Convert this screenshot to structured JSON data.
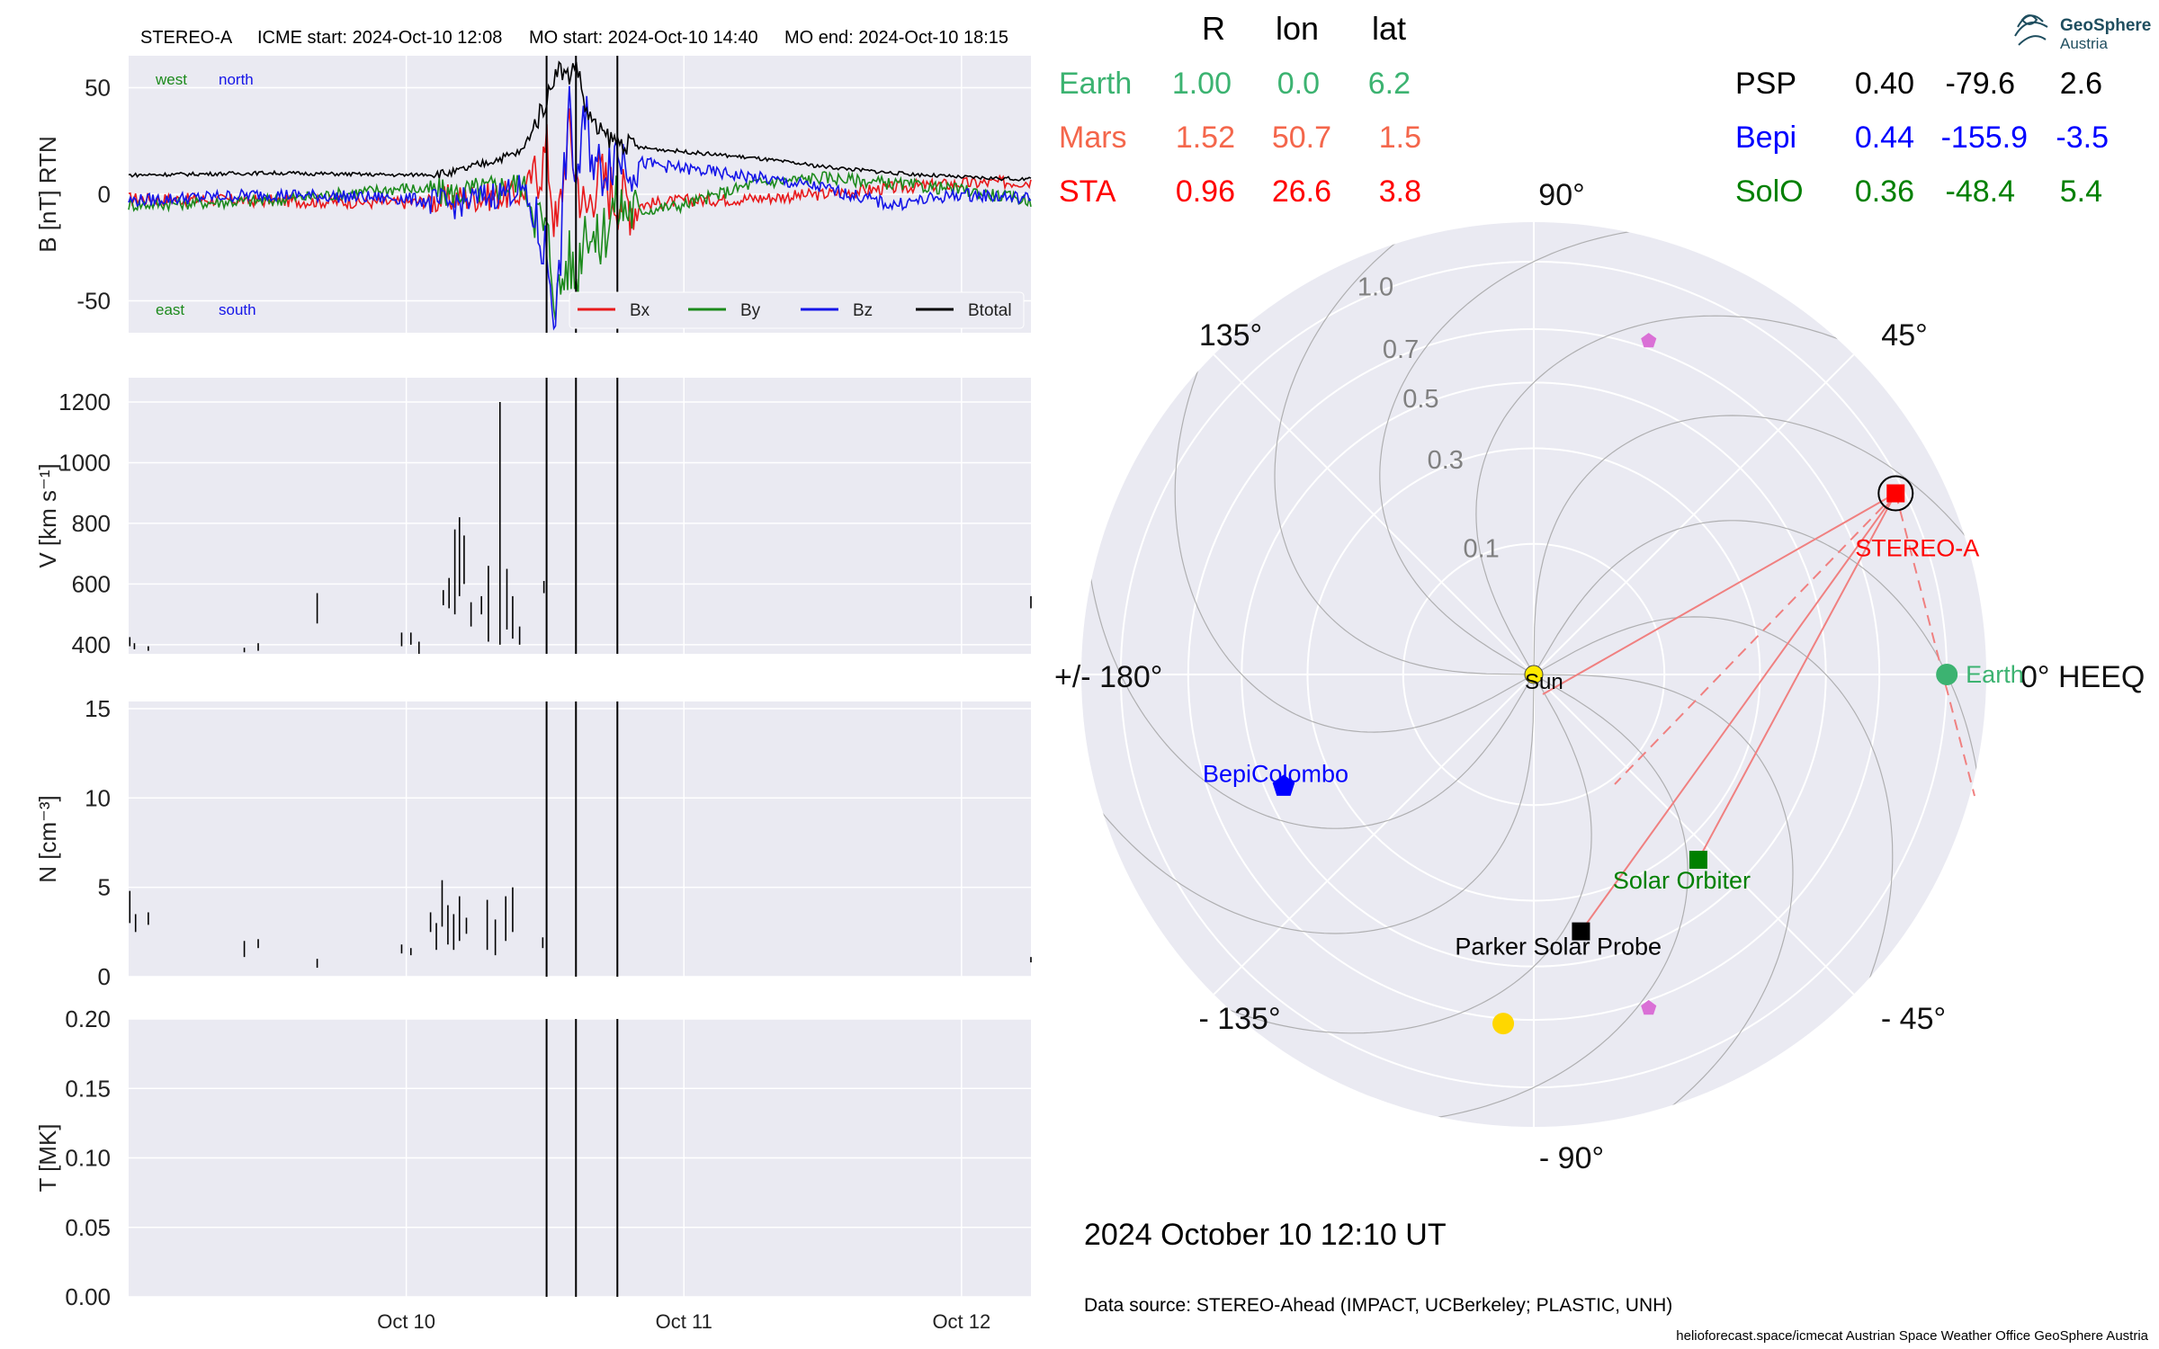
{
  "title_line": {
    "spacecraft": "STEREO-A",
    "icme_start": "ICME start: 2024-Oct-10 12:08",
    "mo_start": "MO start: 2024-Oct-10 14:40",
    "mo_end": "MO end: 2024-Oct-10 18:15"
  },
  "colors": {
    "panel_bg": "#eaeaf2",
    "grid": "#ffffff",
    "bx": "#e8191b",
    "by": "#1c8a1c",
    "bz": "#1515e8",
    "btotal": "#000000",
    "earth": "#3cb371",
    "mars": "#f4664b",
    "sta": "#ff0000",
    "psp": "#000000",
    "bepi": "#0000ff",
    "solo": "#008000",
    "spiral": "#a0a0a0",
    "sun": "#ffea00",
    "planet_pink": "#da70d6",
    "planet_yellow": "#ffd700"
  },
  "chart_data": [
    {
      "type": "line",
      "panel": "magnetic_field",
      "ylabel": "B [nT] RTN",
      "ylim": [
        -65,
        65
      ],
      "yticks": [
        50,
        0,
        -50
      ],
      "xlim": [
        "2024-10-09 00:00",
        "2024-10-12 06:00"
      ],
      "xticks": [
        {
          "label": "Oct 10",
          "t": 24
        },
        {
          "label": "Oct 11",
          "t": 48
        },
        {
          "label": "Oct 12",
          "t": 72
        }
      ],
      "corner_labels": {
        "top": [
          "west",
          "north"
        ],
        "bottom": [
          "east",
          "south"
        ]
      },
      "legend": [
        "Bx",
        "By",
        "Bz",
        "Btotal"
      ],
      "legend_position": "lower right",
      "event_lines_hours": [
        36.13,
        38.67,
        42.25
      ],
      "series": [
        {
          "name": "Bx",
          "t": [
            0,
            12,
            24,
            28,
            34,
            36.2,
            37,
            38,
            38.7,
            39.5,
            40.5,
            42,
            44,
            48,
            54,
            60,
            66,
            72,
            78
          ],
          "values": [
            -2,
            -3,
            -4,
            -2,
            0,
            20,
            -20,
            30,
            10,
            -10,
            10,
            0,
            -5,
            -3,
            -2,
            0,
            3,
            5,
            6
          ]
        },
        {
          "name": "By",
          "t": [
            0,
            12,
            24,
            28,
            34,
            36.2,
            37,
            38,
            38.7,
            39.5,
            40.5,
            42,
            44,
            48,
            54,
            60,
            66,
            72,
            78
          ],
          "values": [
            -5,
            -3,
            3,
            0,
            5,
            -20,
            -50,
            -30,
            -40,
            -10,
            -25,
            -5,
            -8,
            -5,
            5,
            8,
            5,
            2,
            -3
          ]
        },
        {
          "name": "Bz",
          "t": [
            0,
            12,
            24,
            28,
            34,
            36.2,
            37,
            38,
            38.7,
            39.5,
            40.5,
            42,
            44,
            48,
            54,
            60,
            66,
            72,
            78
          ],
          "values": [
            -3,
            0,
            -2,
            -5,
            3,
            -30,
            -60,
            40,
            5,
            35,
            10,
            20,
            15,
            12,
            8,
            3,
            -5,
            0,
            -2
          ]
        },
        {
          "name": "Btotal",
          "t": [
            0,
            12,
            24,
            28,
            34,
            36.2,
            37,
            38,
            38.7,
            39.5,
            40.5,
            42,
            44,
            48,
            54,
            60,
            66,
            72,
            78
          ],
          "values": [
            9,
            10,
            9,
            10,
            20,
            45,
            60,
            55,
            62,
            40,
            30,
            25,
            22,
            20,
            17,
            13,
            10,
            8,
            7
          ]
        }
      ]
    },
    {
      "type": "line",
      "panel": "speed",
      "ylabel": "V [km s⁻¹]",
      "ylim": [
        370,
        1280
      ],
      "yticks": [
        1200,
        1000,
        800,
        600,
        400
      ],
      "segments": [
        {
          "t": 0.1,
          "lo": 395,
          "hi": 425
        },
        {
          "t": 0.5,
          "lo": 385,
          "hi": 405
        },
        {
          "t": 1.7,
          "lo": 380,
          "hi": 395
        },
        {
          "t": 10,
          "lo": 375,
          "hi": 390
        },
        {
          "t": 11.2,
          "lo": 380,
          "hi": 405
        },
        {
          "t": 16.3,
          "lo": 470,
          "hi": 570
        },
        {
          "t": 23.6,
          "lo": 395,
          "hi": 440
        },
        {
          "t": 24.4,
          "lo": 400,
          "hi": 440
        },
        {
          "t": 25.1,
          "lo": 370,
          "hi": 410
        },
        {
          "t": 27.2,
          "lo": 530,
          "hi": 580
        },
        {
          "t": 27.7,
          "lo": 520,
          "hi": 620
        },
        {
          "t": 28.2,
          "lo": 500,
          "hi": 780
        },
        {
          "t": 28.6,
          "lo": 560,
          "hi": 820
        },
        {
          "t": 29.0,
          "lo": 600,
          "hi": 760
        },
        {
          "t": 29.6,
          "lo": 460,
          "hi": 540
        },
        {
          "t": 30.5,
          "lo": 500,
          "hi": 560
        },
        {
          "t": 31.1,
          "lo": 410,
          "hi": 660
        },
        {
          "t": 32.1,
          "lo": 400,
          "hi": 1200
        },
        {
          "t": 32.7,
          "lo": 450,
          "hi": 650
        },
        {
          "t": 33.2,
          "lo": 420,
          "hi": 560
        },
        {
          "t": 33.8,
          "lo": 400,
          "hi": 460
        },
        {
          "t": 35.9,
          "lo": 570,
          "hi": 610
        },
        {
          "t": 78.0,
          "lo": 520,
          "hi": 560
        }
      ]
    },
    {
      "type": "line",
      "panel": "density",
      "ylabel": "N [cm⁻³]",
      "ylim": [
        0,
        15.4
      ],
      "yticks": [
        15,
        10,
        5,
        0
      ],
      "segments": [
        {
          "t": 0.1,
          "lo": 3.0,
          "hi": 4.8
        },
        {
          "t": 0.6,
          "lo": 2.5,
          "hi": 3.5
        },
        {
          "t": 1.7,
          "lo": 2.9,
          "hi": 3.6
        },
        {
          "t": 10,
          "lo": 1.1,
          "hi": 2.0
        },
        {
          "t": 11.2,
          "lo": 1.6,
          "hi": 2.1
        },
        {
          "t": 16.3,
          "lo": 0.5,
          "hi": 1.0
        },
        {
          "t": 23.6,
          "lo": 1.3,
          "hi": 1.8
        },
        {
          "t": 24.4,
          "lo": 1.2,
          "hi": 1.6
        },
        {
          "t": 26.1,
          "lo": 2.5,
          "hi": 3.6
        },
        {
          "t": 26.6,
          "lo": 1.5,
          "hi": 3.0
        },
        {
          "t": 27.1,
          "lo": 2.8,
          "hi": 5.4
        },
        {
          "t": 27.6,
          "lo": 1.8,
          "hi": 4.0
        },
        {
          "t": 28.1,
          "lo": 1.5,
          "hi": 3.5
        },
        {
          "t": 28.6,
          "lo": 2.0,
          "hi": 4.5
        },
        {
          "t": 29.2,
          "lo": 2.4,
          "hi": 3.3
        },
        {
          "t": 31.0,
          "lo": 1.5,
          "hi": 4.3
        },
        {
          "t": 31.7,
          "lo": 1.2,
          "hi": 3.2
        },
        {
          "t": 32.6,
          "lo": 2.0,
          "hi": 4.5
        },
        {
          "t": 33.2,
          "lo": 2.5,
          "hi": 5.0
        },
        {
          "t": 35.8,
          "lo": 1.6,
          "hi": 2.2
        },
        {
          "t": 78.0,
          "lo": 0.8,
          "hi": 1.1
        }
      ]
    },
    {
      "type": "line",
      "panel": "temperature",
      "ylabel": "T [MK]",
      "ylim": [
        0,
        0.2
      ],
      "yticks": [
        "0.20",
        "0.15",
        "0.10",
        "0.05",
        "0.00"
      ],
      "segments": []
    },
    {
      "type": "scatter",
      "panel": "heliospheric_positions",
      "projection": "polar",
      "header": {
        "cols": [
          "R",
          "lon",
          "lat"
        ]
      },
      "bodies": [
        {
          "name": "Earth",
          "R": "1.00",
          "lon": "0.0",
          "lat": "6.2"
        },
        {
          "name": "Mars",
          "R": "1.52",
          "lon": "50.7",
          "lat": "1.5"
        },
        {
          "name": "STA",
          "R": "0.96",
          "lon": "26.6",
          "lat": "3.8"
        },
        {
          "name": "PSP",
          "R": "0.40",
          "lon": "-79.6",
          "lat": "2.6"
        },
        {
          "name": "Bepi",
          "R": "0.44",
          "lon": "-155.9",
          "lat": "-3.5"
        },
        {
          "name": "SolO",
          "R": "0.36",
          "lon": "-48.4",
          "lat": "5.4"
        }
      ],
      "markers": [
        {
          "label": "STEREO-A",
          "r": 0.96,
          "lon": 26.6,
          "shape": "square",
          "color": "#ff0000"
        },
        {
          "label": "Earth",
          "r": 1.0,
          "lon": 0.0,
          "shape": "circle",
          "color": "#3cb371"
        },
        {
          "label": "BepiColombo",
          "r": 0.44,
          "lon": -155.9,
          "shape": "pentagon",
          "color": "#0000ff"
        },
        {
          "label": "Solar Orbiter",
          "r": 0.36,
          "lon": -48.4,
          "shape": "square",
          "color": "#008000"
        },
        {
          "label": "Parker Solar Probe",
          "r": 0.4,
          "lon": -79.6,
          "shape": "square",
          "color": "#000000"
        },
        {
          "label": "Sun",
          "r": 0.0,
          "lon": 0.0,
          "shape": "circle",
          "color": "#ffea00"
        },
        {
          "label": "",
          "r": 0.73,
          "lon": 71.0,
          "shape": "pentagon",
          "color": "#da70d6"
        },
        {
          "label": "",
          "r": 0.73,
          "lon": -71.0,
          "shape": "pentagon",
          "color": "#da70d6"
        },
        {
          "label": "",
          "r": 0.72,
          "lon": -95.0,
          "shape": "circle",
          "color": "#ffd700"
        }
      ],
      "radial_ticks": [
        "0.1",
        "0.3",
        "0.5",
        "0.7",
        "1.0"
      ],
      "angle_labels": {
        "a90": "90°",
        "a45": "45°",
        "a0": "0° HEEQ",
        "am45": "- 45°",
        "am90": "- 90°",
        "am135": "- 135°",
        "a180": "+/- 180°",
        "a135": "135°"
      }
    }
  ],
  "footer": {
    "timestamp": "2024 October 10  12:10 UT",
    "data_source": "Data source: STEREO-Ahead (IMPACT, UCBerkeley; PLASTIC, UNH)",
    "credits": "helioforecast.space/icmecat   Austrian Space Weather Office   GeoSphere Austria"
  },
  "logo": {
    "line1": "GeoSphere",
    "line2": "Austria"
  }
}
